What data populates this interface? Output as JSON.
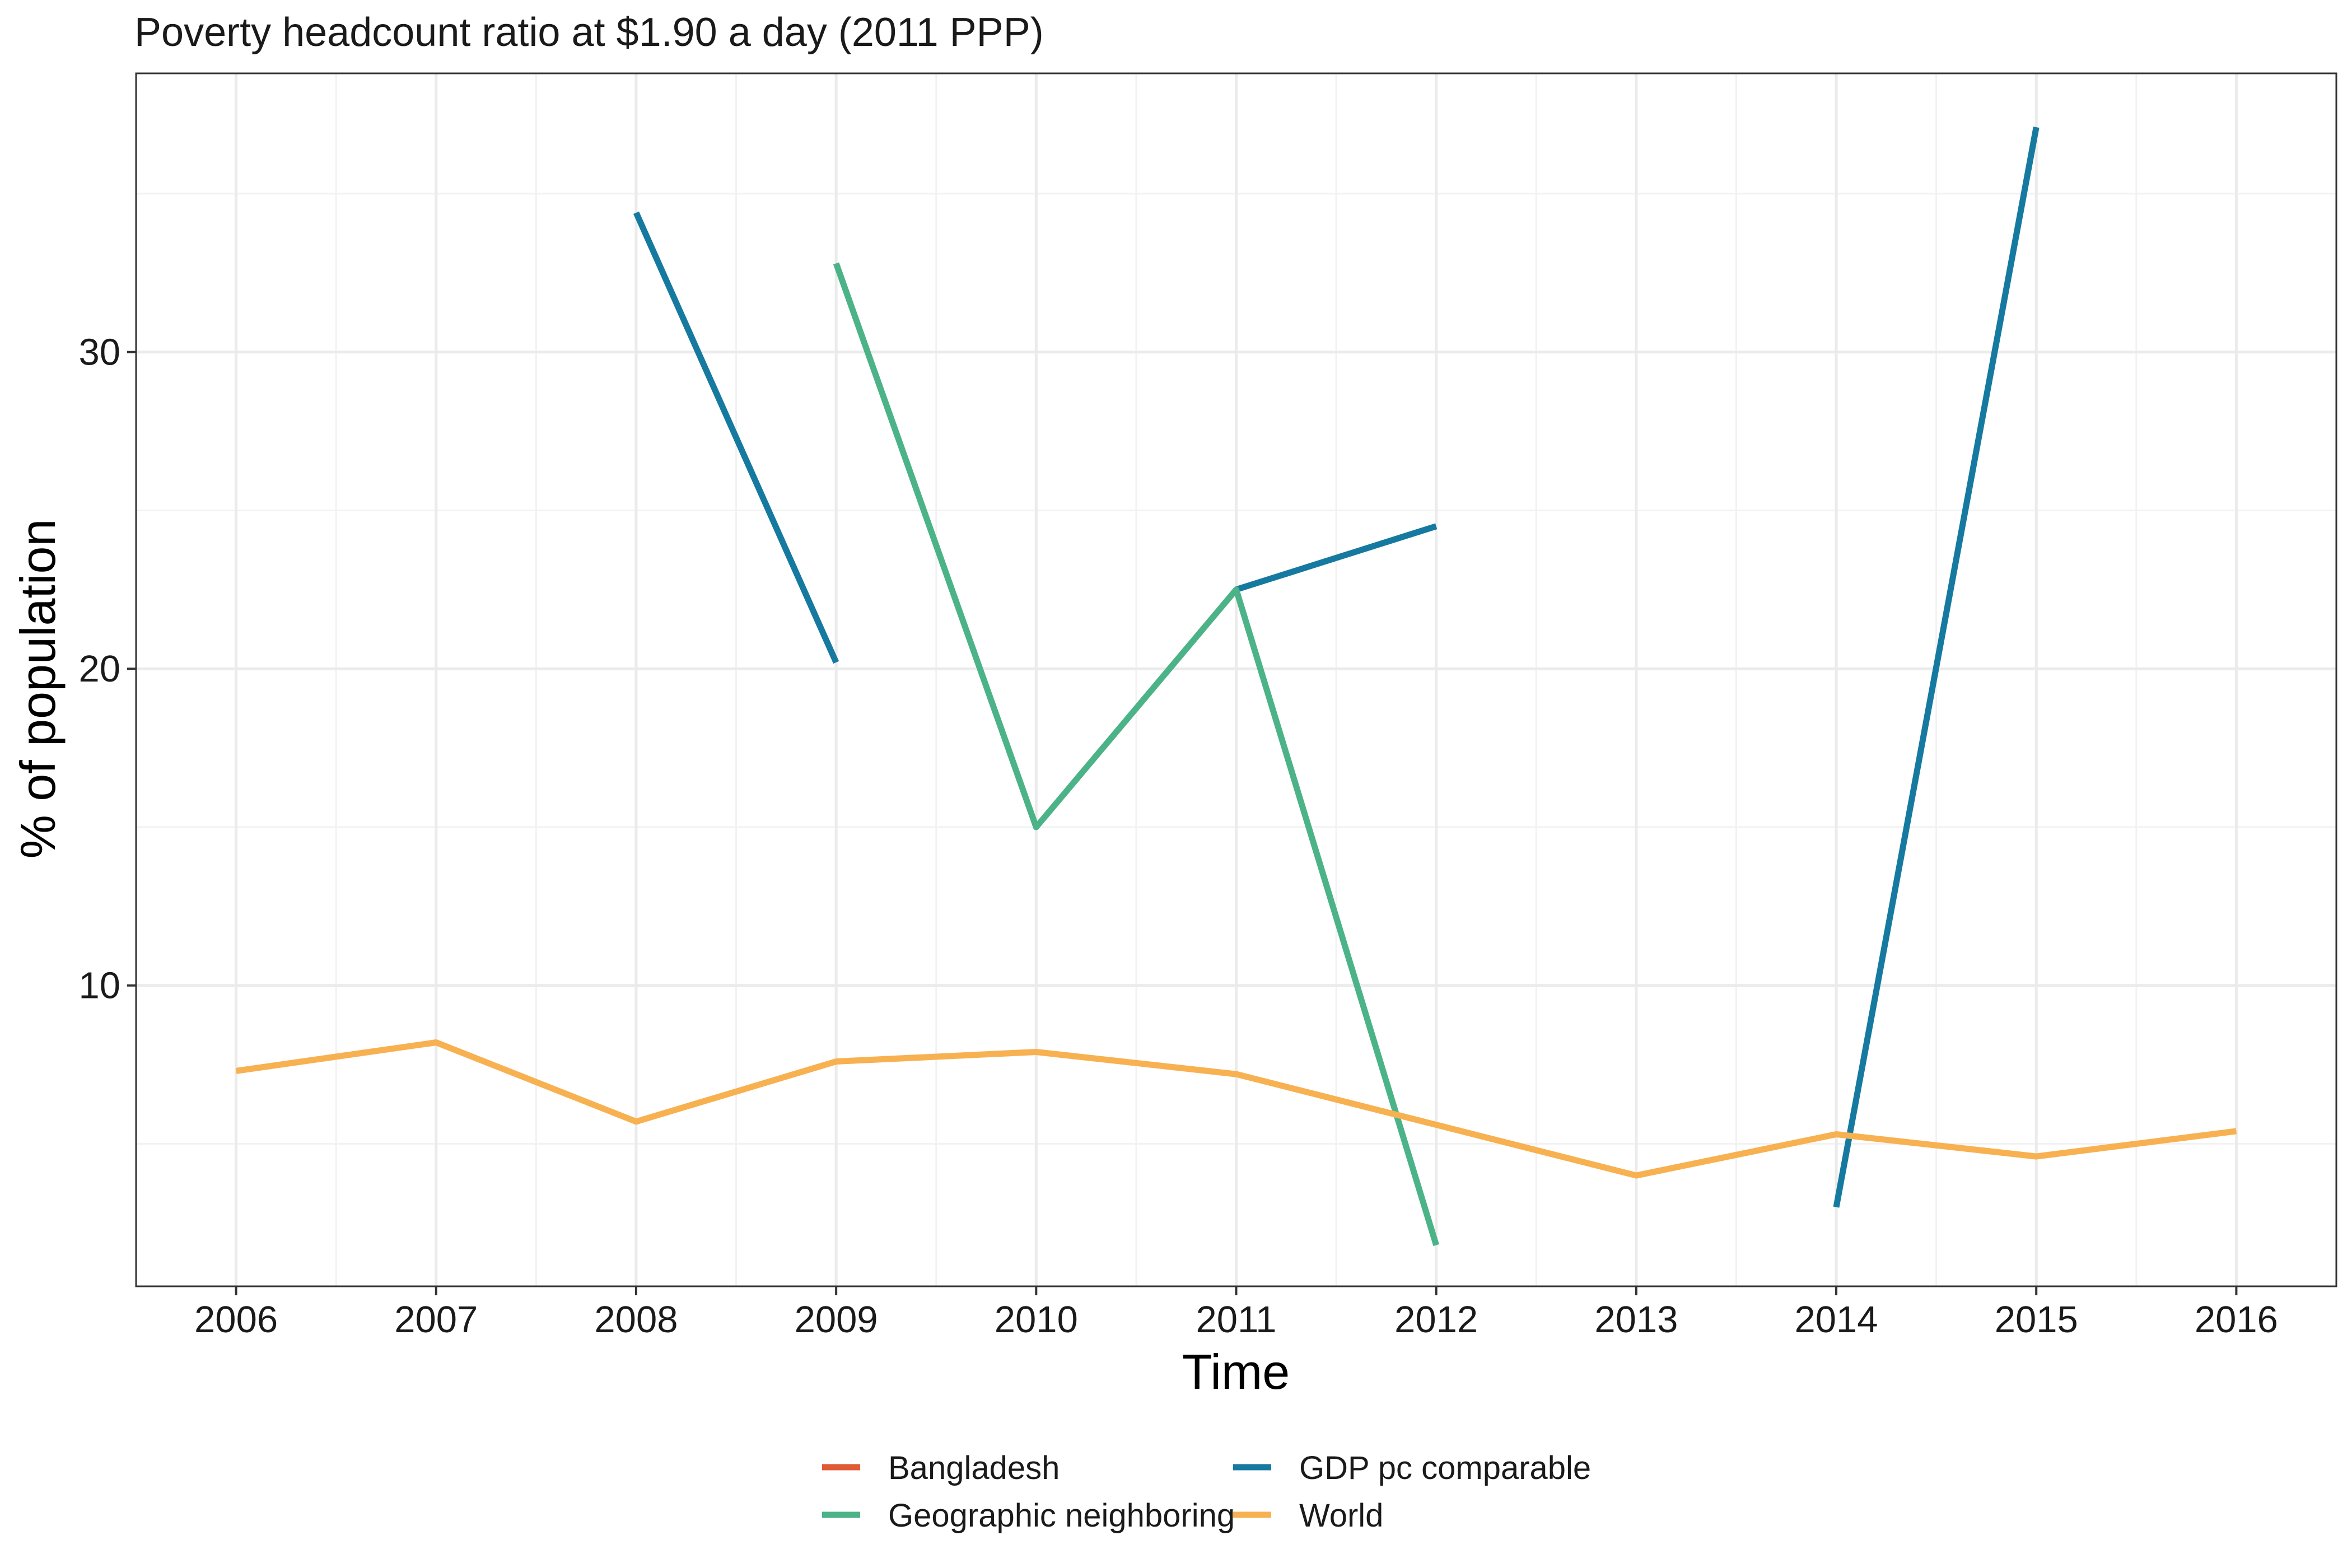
{
  "chart_data": {
    "type": "line",
    "title": "Poverty headcount ratio at $1.90 a day (2011 PPP)",
    "xlabel": "Time",
    "ylabel": "% of population",
    "x_ticks": [
      "2006",
      "2007",
      "2008",
      "2009",
      "2010",
      "2011",
      "2012",
      "2013",
      "2014",
      "2015",
      "2016"
    ],
    "xlim": [
      2005.5,
      2016.5
    ],
    "ylim": [
      0.5,
      38.8
    ],
    "y_ticks": [
      10,
      20,
      30
    ],
    "grid": true,
    "legend_position": "bottom",
    "series": [
      {
        "name": "Bangladesh",
        "color": "#e05a33",
        "points": []
      },
      {
        "name": "GDP pc comparable",
        "color": "#167aa0",
        "points": [
          [
            2008,
            34.4
          ],
          [
            2009,
            20.2
          ],
          null,
          [
            2011,
            22.5
          ],
          [
            2012,
            24.5
          ],
          null,
          [
            2014,
            3.0
          ],
          [
            2015,
            37.1
          ]
        ]
      },
      {
        "name": "Geographic neighboring",
        "color": "#4cb388",
        "points": [
          [
            2009,
            32.8
          ],
          [
            2010,
            15.0
          ],
          [
            2011,
            22.5
          ],
          [
            2012,
            1.8
          ]
        ]
      },
      {
        "name": "World",
        "color": "#f7b151",
        "points": [
          [
            2006,
            7.3
          ],
          [
            2007,
            8.2
          ],
          [
            2008,
            5.7
          ],
          [
            2009,
            7.6
          ],
          [
            2010,
            7.9
          ],
          [
            2011,
            7.2
          ],
          [
            2012,
            5.6
          ],
          [
            2013,
            4.0
          ],
          [
            2014,
            5.3
          ],
          [
            2015,
            4.6
          ],
          [
            2016,
            5.4
          ]
        ]
      }
    ],
    "legend_order": [
      "Bangladesh",
      "Geographic neighboring",
      "GDP pc comparable",
      "World"
    ]
  }
}
